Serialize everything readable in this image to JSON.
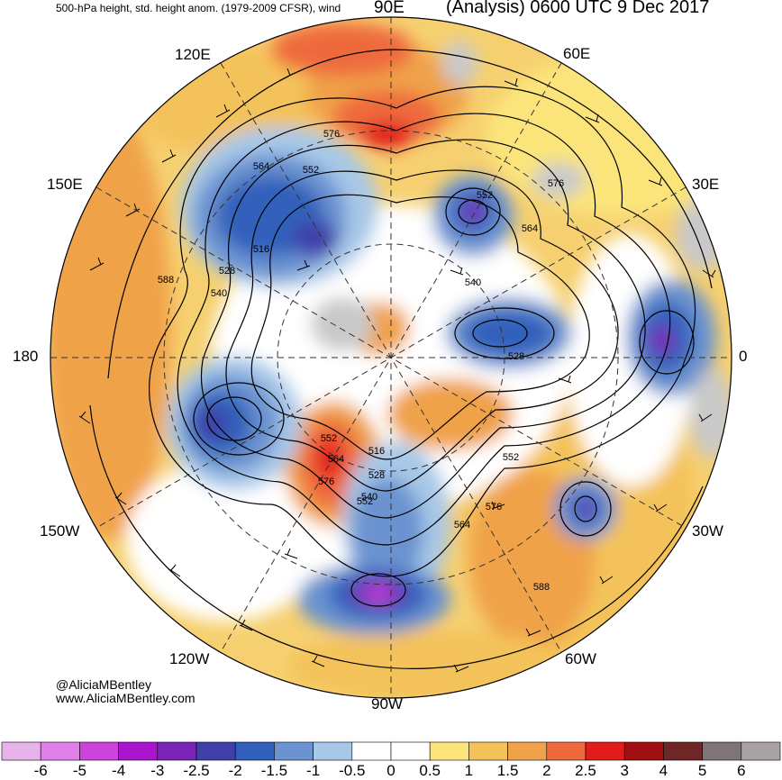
{
  "header": {
    "title_left": "500-hPa height, std. height anom. (1979-2009 CFSR), wind",
    "title_right": "(Analysis) 0600 UTC 9 Dec 2017"
  },
  "longitude_labels": {
    "e90": "90E",
    "e60": "60E",
    "e120": "120E",
    "e150": "150E",
    "e30": "30E",
    "d180": "180",
    "d0": "0",
    "w150": "150W",
    "w30": "30W",
    "w120": "120W",
    "w60": "60W",
    "w90": "90W"
  },
  "contour_labels": [
    "576",
    "564",
    "552",
    "552",
    "576",
    "564",
    "516",
    "528",
    "540",
    "588",
    "540",
    "528",
    "552",
    "564",
    "576",
    "552",
    "516",
    "528",
    "540",
    "552",
    "576",
    "564",
    "588"
  ],
  "credits": {
    "handle": "@AliciaMBentley",
    "website": "www.AliciaMBentley.com"
  },
  "colorbar": {
    "ticks": [
      "-6",
      "-5",
      "-4",
      "-3",
      "-2.5",
      "-2",
      "-1.5",
      "-1",
      "-0.5",
      "0",
      "0.5",
      "1",
      "1.5",
      "2",
      "2.5",
      "3",
      "4",
      "5",
      "6"
    ],
    "colors": [
      "#e6b3ea",
      "#e080e8",
      "#cc44dd",
      "#a815cc",
      "#7a25b8",
      "#4040a8",
      "#3060bb",
      "#6b93d0",
      "#a7c8e8",
      "#ffffff",
      "#ffffff",
      "#fbe57a",
      "#f4c25a",
      "#f0a24a",
      "#ee6a3d",
      "#e21b1b",
      "#a00f12",
      "#6e2626",
      "#7d7576",
      "#a8a2a2"
    ]
  },
  "colors": {
    "land": "#c9c9c9",
    "warm1": "#fbe57a",
    "warm2": "#f4c25a",
    "warm3": "#f0a24a",
    "warm4": "#ee6a3d",
    "warm5": "#e21b1b",
    "cold1": "#a7c8e8",
    "cold2": "#6b93d0",
    "cold3": "#3060bb",
    "cold4": "#4040a8",
    "cold5": "#7a25b8",
    "cold6": "#cc44dd"
  }
}
